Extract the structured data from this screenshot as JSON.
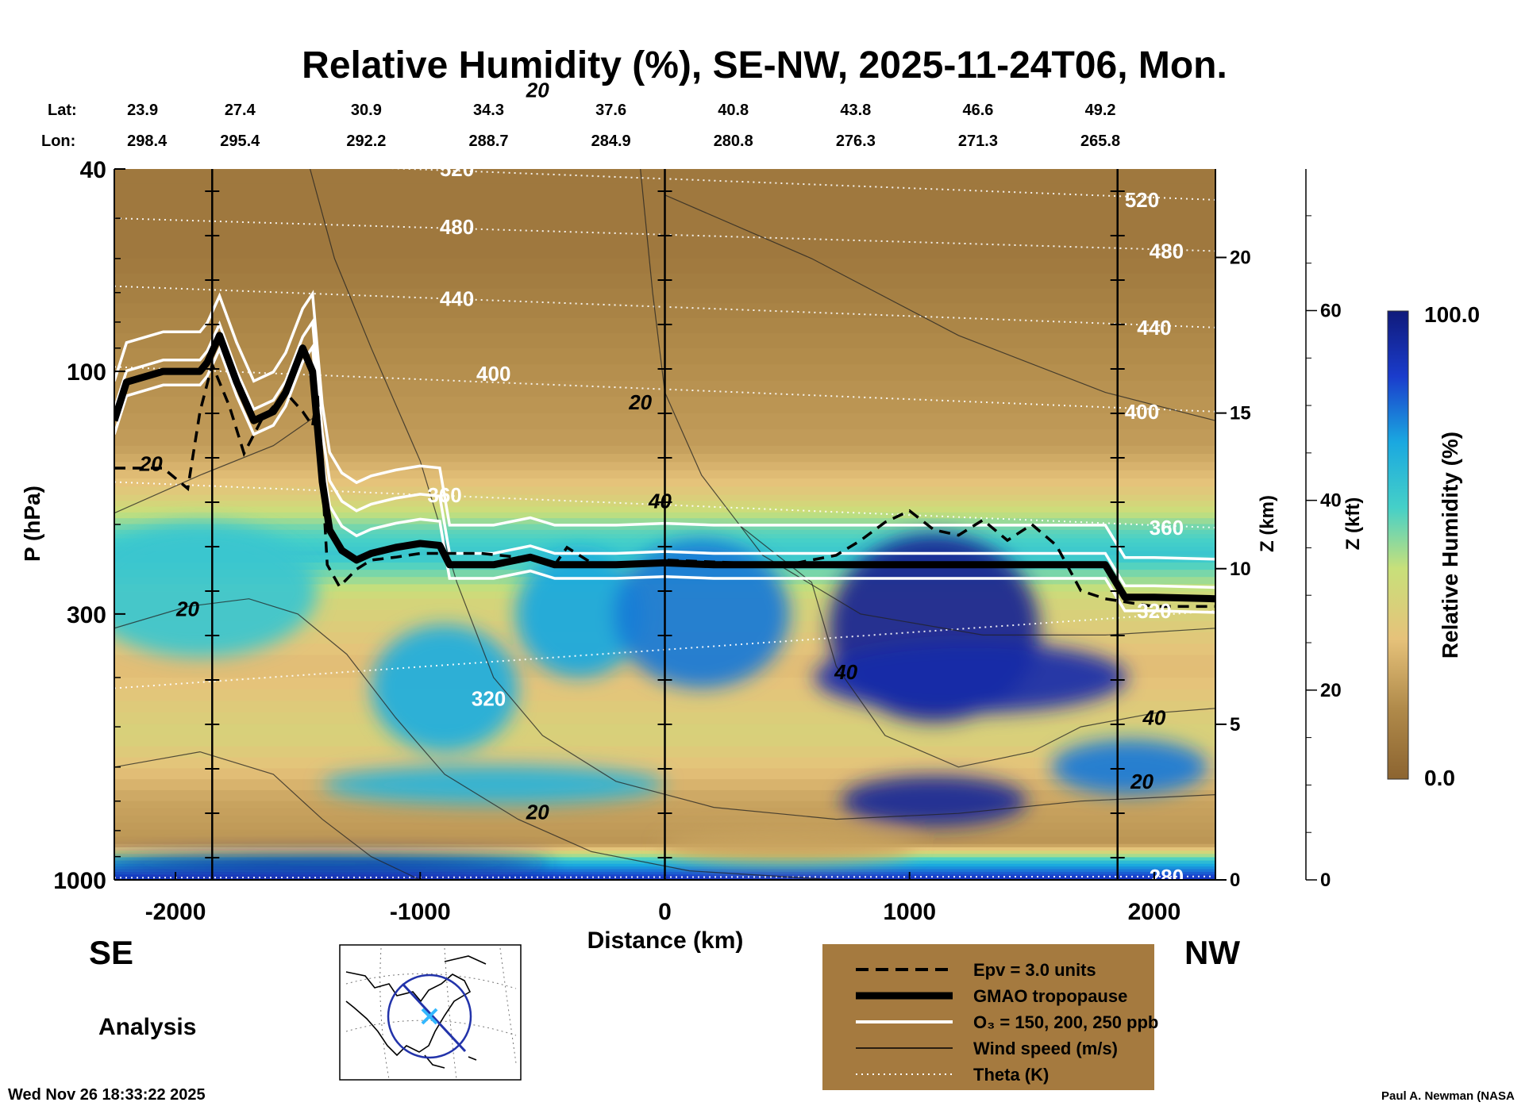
{
  "chart_data": {
    "type": "heatmap",
    "title": "Relative Humidity (%), SE-NW, 2025-11-24T06, Mon.",
    "xlabel": "Distance (km)",
    "ylabel": "P (hPa)",
    "z_km_label": "Z (km)",
    "z_kft_label": "Z (kft)",
    "colorbar_label": "Relative Humidity (%)",
    "colorbar_range": [
      "0.0",
      "100.0"
    ],
    "xlim": [
      -2250,
      2250
    ],
    "ylim_hpa": [
      1000,
      40
    ],
    "x_ticks": [
      -2000,
      -1000,
      0,
      1000,
      2000
    ],
    "p_ticks": [
      40,
      100,
      300,
      1000
    ],
    "z_km_ticks": [
      0,
      5,
      10,
      15,
      20
    ],
    "z_kft_ticks": [
      0,
      20,
      40,
      60
    ],
    "lat_label": "Lat:",
    "lon_label": "Lon:",
    "lat_values": [
      "23.9",
      "27.4",
      "30.9",
      "34.3",
      "37.6",
      "40.8",
      "43.8",
      "46.6",
      "49.2"
    ],
    "lon_values": [
      "298.4",
      "295.4",
      "292.2",
      "288.7",
      "284.9",
      "280.8",
      "276.3",
      "271.3",
      "265.8"
    ],
    "section_lines_km": [
      -1850,
      0,
      1850
    ],
    "left_end": "SE",
    "right_end": "NW",
    "panel_label": "Analysis",
    "theta_labels": [
      {
        "text": "520",
        "x": -850,
        "p": 40
      },
      {
        "text": "480",
        "x": -850,
        "p": 52
      },
      {
        "text": "440",
        "x": -850,
        "p": 72
      },
      {
        "text": "400",
        "x": -700,
        "p": 101
      },
      {
        "text": "360",
        "x": -900,
        "p": 175
      },
      {
        "text": "320",
        "x": -720,
        "p": 440
      },
      {
        "text": "520",
        "x": 1950,
        "p": 46
      },
      {
        "text": "480",
        "x": 2050,
        "p": 58
      },
      {
        "text": "440",
        "x": 2000,
        "p": 82
      },
      {
        "text": "400",
        "x": 1950,
        "p": 120
      },
      {
        "text": "360",
        "x": 2050,
        "p": 203
      },
      {
        "text": "320",
        "x": 2000,
        "p": 296
      },
      {
        "text": "280",
        "x": 2050,
        "p": 985
      }
    ],
    "wind_labels": [
      {
        "text": "20",
        "x": -2100,
        "p": 152
      },
      {
        "text": "20",
        "x": -1950,
        "p": 293
      },
      {
        "text": "20",
        "x": -520,
        "p": 28
      },
      {
        "text": "20",
        "x": -520,
        "p": 735
      },
      {
        "text": "20",
        "x": -100,
        "p": 115
      },
      {
        "text": "40",
        "x": -20,
        "p": 180
      },
      {
        "text": "40",
        "x": 740,
        "p": 390
      },
      {
        "text": "40",
        "x": 2000,
        "p": 480
      },
      {
        "text": "20",
        "x": 1950,
        "p": 640
      }
    ],
    "legend": [
      {
        "style": "dashed",
        "label": "Epv = 3.0 units"
      },
      {
        "style": "thick",
        "label": "GMAO tropopause"
      },
      {
        "style": "white",
        "label": "O₃ = 150, 200, 250 ppb"
      },
      {
        "style": "thin",
        "label": "Wind speed (m/s)"
      },
      {
        "style": "dotted",
        "label": "Theta (K)"
      }
    ],
    "tropopause_hpa": {
      "x": [
        -2250,
        -2200,
        -2050,
        -1900,
        -1870,
        -1820,
        -1750,
        -1680,
        -1600,
        -1550,
        -1480,
        -1440,
        -1400,
        -1370,
        -1320,
        -1260,
        -1200,
        -1100,
        -1000,
        -920,
        -880,
        -700,
        -550,
        -450,
        -200,
        0,
        200,
        1000,
        1700,
        1800,
        1880,
        2000,
        2250
      ],
      "p": [
        125,
        105,
        100,
        100,
        96,
        85,
        105,
        125,
        120,
        110,
        90,
        100,
        165,
        205,
        225,
        235,
        228,
        222,
        218,
        220,
        240,
        240,
        232,
        240,
        240,
        238,
        240,
        240,
        240,
        240,
        278,
        278,
        280
      ]
    },
    "epv_hpa": {
      "x": [
        -2250,
        -2050,
        -1950,
        -1900,
        -1850,
        -1780,
        -1720,
        -1650,
        -1550,
        -1480,
        -1440,
        -1420,
        -1380,
        -1330,
        -1260,
        -1200,
        -1100,
        -1000,
        -900,
        -750,
        -600,
        -450,
        -400,
        -300,
        -200,
        -100,
        0,
        500,
        700,
        800,
        900,
        1000,
        1100,
        1200,
        1300,
        1400,
        1500,
        1600,
        1700,
        1800,
        1900,
        2000,
        2250
      ],
      "p": [
        155,
        155,
        170,
        120,
        97,
        117,
        145,
        125,
        110,
        120,
        128,
        110,
        240,
        265,
        245,
        235,
        232,
        228,
        228,
        228,
        232,
        240,
        222,
        238,
        240,
        240,
        235,
        240,
        230,
        215,
        198,
        188,
        205,
        210,
        196,
        215,
        200,
        220,
        270,
        280,
        285,
        290,
        290
      ]
    },
    "rh_blobs": [
      {
        "x": -1900,
        "p": 270,
        "rx": 480,
        "ry": 95,
        "rh": 62
      },
      {
        "x": -900,
        "p": 420,
        "rx": 300,
        "ry": 140,
        "rh": 70
      },
      {
        "x": -350,
        "p": 300,
        "rx": 260,
        "ry": 100,
        "rh": 72
      },
      {
        "x": 150,
        "p": 300,
        "rx": 360,
        "ry": 120,
        "rh": 78
      },
      {
        "x": -700,
        "p": 650,
        "rx": 700,
        "ry": 60,
        "rh": 68
      },
      {
        "x": 1100,
        "p": 320,
        "rx": 430,
        "ry": 170,
        "rh": 96
      },
      {
        "x": 1250,
        "p": 400,
        "rx": 640,
        "ry": 70,
        "rh": 92
      },
      {
        "x": 1100,
        "p": 700,
        "rx": 380,
        "ry": 85,
        "rh": 95
      },
      {
        "x": 1900,
        "p": 600,
        "rx": 320,
        "ry": 80,
        "rh": 78
      },
      {
        "x": -1400,
        "p": 930,
        "rx": 950,
        "ry": 42,
        "rh": 95
      },
      {
        "x": 500,
        "p": 860,
        "rx": 520,
        "ry": 70,
        "rh": 22
      }
    ],
    "rh_layers": [
      {
        "p": 40,
        "rh": 8
      },
      {
        "p": 60,
        "rh": 8
      },
      {
        "p": 90,
        "rh": 15
      },
      {
        "p": 140,
        "rh": 20
      },
      {
        "p": 175,
        "rh": 34
      },
      {
        "p": 205,
        "rh": 55
      },
      {
        "p": 230,
        "rh": 62
      },
      {
        "p": 280,
        "rh": 40
      },
      {
        "p": 380,
        "rh": 28
      },
      {
        "p": 520,
        "rh": 38
      },
      {
        "p": 700,
        "rh": 22
      },
      {
        "p": 850,
        "rh": 18
      },
      {
        "p": 930,
        "rh": 70
      },
      {
        "p": 1000,
        "rh": 90
      }
    ]
  },
  "footer": {
    "timestamp": "Wed Nov 26 18:33:22 2025",
    "credit": "Paul A. Newman (NASA"
  }
}
